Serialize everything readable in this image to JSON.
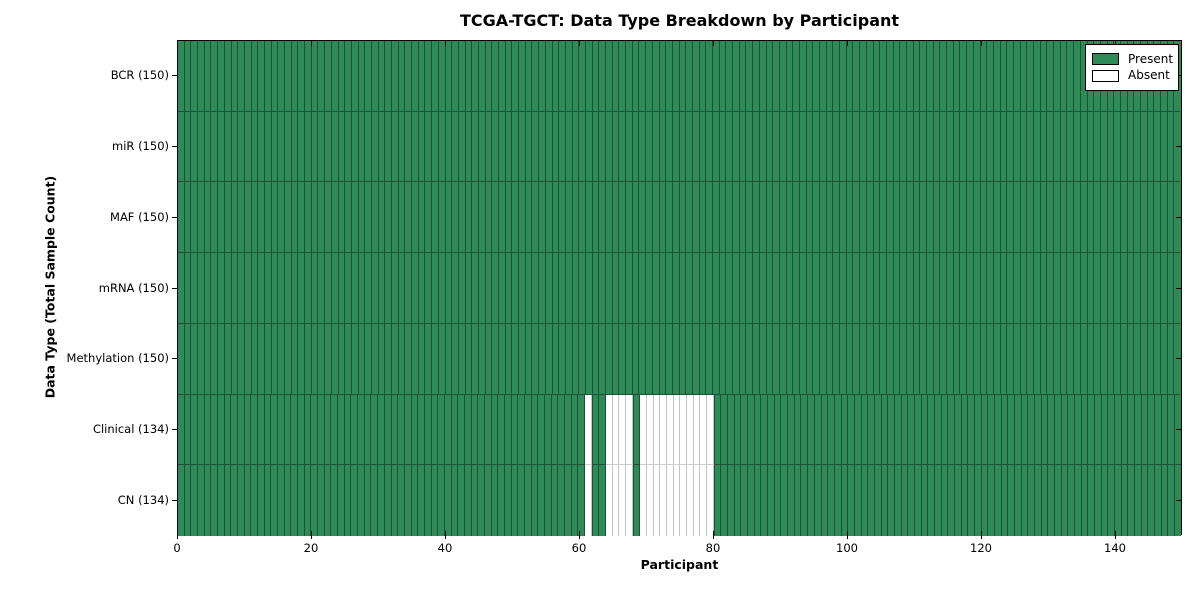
{
  "chart_data": {
    "type": "heatmap",
    "title": "TCGA-TGCT: Data Type Breakdown by Participant",
    "xlabel": "Participant",
    "ylabel": "Data Type (Total Sample Count)",
    "x_range": [
      0,
      150
    ],
    "n_participants": 150,
    "x_ticks": [
      0,
      20,
      40,
      60,
      80,
      100,
      120,
      140
    ],
    "grid": true,
    "legend_position": "upper right",
    "rows": [
      {
        "data_type": "BCR",
        "label": "BCR (150)",
        "total_samples": 150,
        "absent_participants": []
      },
      {
        "data_type": "miR",
        "label": "miR (150)",
        "total_samples": 150,
        "absent_participants": []
      },
      {
        "data_type": "MAF",
        "label": "MAF (150)",
        "total_samples": 150,
        "absent_participants": []
      },
      {
        "data_type": "mRNA",
        "label": "mRNA (150)",
        "total_samples": 150,
        "absent_participants": []
      },
      {
        "data_type": "Methylation",
        "label": "Methylation (150)",
        "total_samples": 150,
        "absent_participants": []
      },
      {
        "data_type": "Clinical",
        "label": "Clinical (134)",
        "total_samples": 134,
        "absent_participants": [
          61,
          64,
          65,
          66,
          67,
          69,
          70,
          71,
          72,
          73,
          74,
          75,
          76,
          77,
          78,
          79
        ]
      },
      {
        "data_type": "CN",
        "label": "CN (134)",
        "total_samples": 134,
        "absent_participants": [
          61,
          64,
          65,
          66,
          67,
          69,
          70,
          71,
          72,
          73,
          74,
          75,
          76,
          77,
          78,
          79
        ]
      }
    ],
    "legend": [
      {
        "label": "Present",
        "color": "#2e8b57"
      },
      {
        "label": "Absent",
        "color": "#ffffff"
      }
    ],
    "colors": {
      "present": "#2e8b57",
      "present_border": "#1b5236",
      "absent": "#ffffff",
      "absent_border": "#c3c3c3",
      "absent_row_line": "#cfcfcf",
      "axis": "#000000"
    }
  }
}
